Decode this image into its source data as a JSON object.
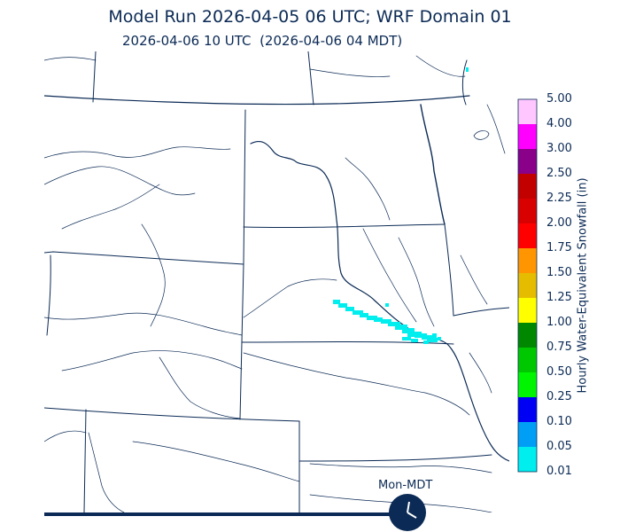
{
  "header": {
    "title": "Model Run 2026-04-05 06 UTC; WRF Domain 01",
    "valid_time": "2026-04-06 10 UTC  (2026-04-06 04 MDT)"
  },
  "colorbar": {
    "label": "Hourly Water-Equivalent Snowfall (in)",
    "levels": [
      "0.01",
      "0.05",
      "0.10",
      "0.25",
      "0.50",
      "0.75",
      "1.00",
      "1.25",
      "1.50",
      "1.75",
      "2.00",
      "2.25",
      "2.50",
      "3.00",
      "4.00",
      "5.00"
    ],
    "colors": [
      "#00eeee",
      "#009ff5",
      "#0000f5",
      "#00f500",
      "#00c800",
      "#008800",
      "#ffff00",
      "#e6bc00",
      "#ff9500",
      "#ff0000",
      "#d80000",
      "#c20000",
      "#8a0088",
      "#ff00ff",
      "#ffc6ff"
    ]
  },
  "colors": {
    "boundary": "#0b2a55",
    "snow_light": "#00eeee"
  },
  "time_indicator": {
    "label": "Mon-MDT",
    "icon": "clock-icon",
    "progress": 0.78
  }
}
